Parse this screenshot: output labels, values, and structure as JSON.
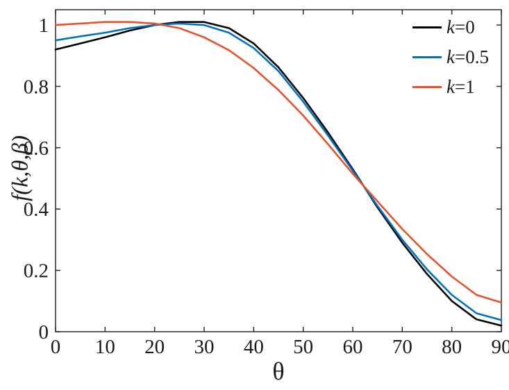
{
  "chart_data": {
    "type": "line",
    "title": "",
    "xlabel": "θ",
    "ylabel": "f(k,θ,β)",
    "xlim": [
      0,
      90
    ],
    "ylim": [
      0,
      1.05
    ],
    "grid": false,
    "legend_position": "top-right",
    "x_ticks": [
      0,
      10,
      20,
      30,
      40,
      50,
      60,
      70,
      80,
      90
    ],
    "x_tick_labels": [
      "0",
      "10",
      "20",
      "30",
      "40",
      "50",
      "60",
      "70",
      "80",
      "90"
    ],
    "y_ticks": [
      0,
      0.2,
      0.4,
      0.6,
      0.8,
      1
    ],
    "y_tick_labels": [
      "0",
      "0.2",
      "0.4",
      "0.6",
      "0.8",
      "1"
    ],
    "x": [
      0,
      5,
      10,
      15,
      20,
      25,
      30,
      35,
      40,
      45,
      50,
      55,
      60,
      65,
      70,
      75,
      80,
      85,
      90
    ],
    "series": [
      {
        "name": "k=0",
        "label_var": "k",
        "label_eq": "=0",
        "color": "#000000",
        "values": [
          0.92,
          0.94,
          0.96,
          0.982,
          1.0,
          1.01,
          1.01,
          0.99,
          0.94,
          0.862,
          0.762,
          0.65,
          0.53,
          0.405,
          0.29,
          0.188,
          0.1,
          0.04,
          0.02
        ]
      },
      {
        "name": "k=0.5",
        "label_var": "k",
        "label_eq": "=0.5",
        "color": "#0072bd",
        "values": [
          0.95,
          0.963,
          0.975,
          0.99,
          1.0,
          1.005,
          1.0,
          0.975,
          0.925,
          0.85,
          0.75,
          0.64,
          0.525,
          0.41,
          0.3,
          0.203,
          0.12,
          0.06,
          0.038
        ]
      },
      {
        "name": "k=1",
        "label_var": "k",
        "label_eq": "=1",
        "color": "#e8512b",
        "values": [
          1.0,
          1.005,
          1.01,
          1.01,
          1.005,
          0.99,
          0.96,
          0.918,
          0.86,
          0.788,
          0.705,
          0.612,
          0.515,
          0.425,
          0.335,
          0.253,
          0.18,
          0.12,
          0.095
        ]
      }
    ]
  }
}
